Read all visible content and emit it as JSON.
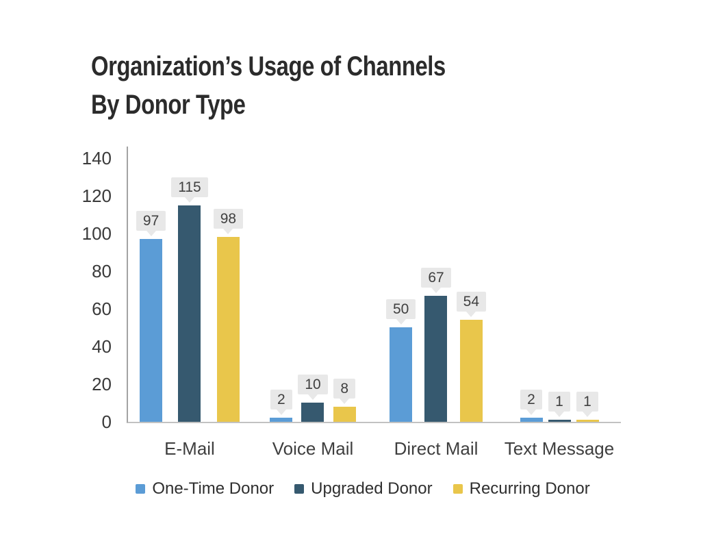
{
  "title": "Organization’s Usage of Channels\nBy Donor Type",
  "chart_data": {
    "type": "bar",
    "title": "Organization’s Usage of Channels By Donor Type",
    "categories": [
      "E-Mail",
      "Voice Mail",
      "Direct Mail",
      "Text Message"
    ],
    "series": [
      {
        "name": "One-Time Donor",
        "color": "#5B9CD6",
        "values": [
          97,
          2,
          50,
          2
        ]
      },
      {
        "name": "Upgraded Donor",
        "color": "#36596F",
        "values": [
          115,
          10,
          67,
          1
        ]
      },
      {
        "name": "Recurring Donor",
        "color": "#E9C64B",
        "values": [
          98,
          8,
          54,
          1
        ]
      }
    ],
    "xlabel": "",
    "ylabel": "",
    "ylim": [
      0,
      140
    ],
    "ytick_step": 20,
    "yticks": [
      "140",
      "120",
      "100",
      "80",
      "60",
      "40",
      "20",
      "0"
    ],
    "grid": false,
    "data_labels": true,
    "legend_position": "bottom",
    "colors": {
      "data_label_bg": "#E8E8E8",
      "data_label_text": "#404040",
      "axis_line_y": "#A3A3A3",
      "axis_line_x": "#C2C2C2",
      "title_text": "#2B2B2B",
      "background": "#FFFFFF"
    }
  }
}
